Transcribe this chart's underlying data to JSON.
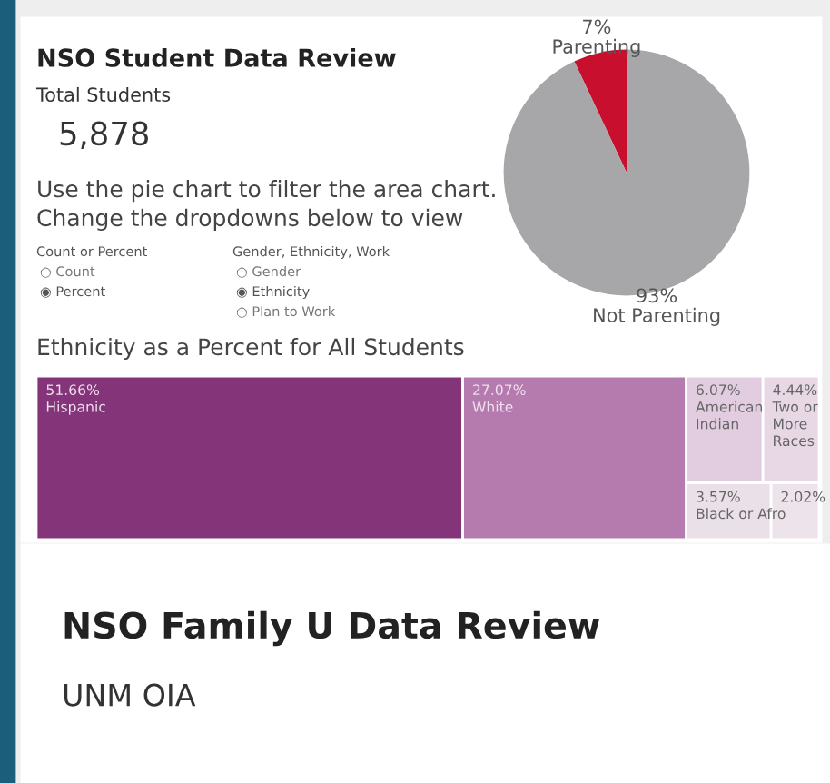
{
  "chart_data": [
    {
      "type": "other",
      "title": "NSO Student Data Review",
      "annotations": [
        "Total Students",
        "5,878",
        "Use the pie chart to filter the area chart.\nChange the dropdowns below to view",
        "Count or Percent",
        "○ Count",
        "◉ Percent",
        "Gender, Ethnicity, Work",
        "○ Gender",
        "◉ Ethnicity",
        "○ Plan to Work"
      ]
    },
    {
      "type": "pie",
      "categories": [
        "Parenting",
        "Not Parenting"
      ],
      "values": [
        7,
        93
      ],
      "colors": [
        "#c8102e",
        "#a7a7aa"
      ],
      "value_labels": [
        "7%",
        "93%"
      ]
    },
    {
      "type": "other",
      "title": "Ethnicity as a Percent for All Students",
      "categories": [
        "Hispanic",
        "White",
        "American\nIndian",
        "Two or\nMore\nRaces",
        "Black or Afro",
        null
      ],
      "values": [
        51.66,
        27.07,
        6.07,
        4.44,
        3.57,
        2.02
      ],
      "value_labels": [
        "51.66%",
        "27.07%",
        "6.07%",
        "4.44%",
        "3.57%",
        "2.02%"
      ],
      "colors": [
        "#84357a",
        "#b57aae",
        "#e2cde0",
        "#e8d8e6",
        "#eae0e8",
        "#ece4ea"
      ]
    },
    {
      "type": "other",
      "title": "NSO Family U Data Review",
      "subtitle": "UNM OIA"
    }
  ]
}
